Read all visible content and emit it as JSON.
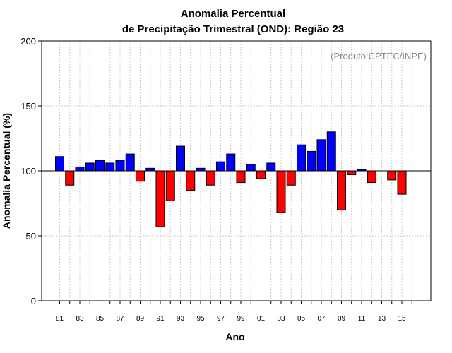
{
  "chart_data": {
    "type": "bar",
    "title": "Anomalia Percentual",
    "subtitle": "de Precipitação Trimestral (OND): Região 23",
    "xlabel": "Ano",
    "ylabel": "Anomalia Percentual (%)",
    "credit": "(Produto:CPTEC/INPE)",
    "ylim": [
      0,
      200
    ],
    "yticks": [
      0,
      50,
      100,
      150,
      200
    ],
    "baseline": 100,
    "grid": true,
    "xtick_labels": [
      "81",
      "83",
      "85",
      "87",
      "89",
      "91",
      "93",
      "95",
      "97",
      "99",
      "01",
      "03",
      "05",
      "07",
      "09",
      "11",
      "13",
      "15"
    ],
    "categories": [
      1981,
      1982,
      1983,
      1984,
      1985,
      1986,
      1987,
      1988,
      1989,
      1990,
      1991,
      1992,
      1993,
      1994,
      1995,
      1996,
      1997,
      1998,
      1999,
      2000,
      2001,
      2002,
      2003,
      2004,
      2005,
      2006,
      2007,
      2008,
      2009,
      2010,
      2011,
      2012,
      2013,
      2014,
      2015,
      2016
    ],
    "values": [
      111,
      89,
      103,
      106,
      108,
      106,
      108,
      113,
      92,
      102,
      57,
      77,
      119,
      85,
      102,
      89,
      107,
      113,
      91,
      105,
      94,
      106,
      68,
      89,
      120,
      115,
      124,
      130,
      70,
      97,
      101,
      91,
      100,
      93,
      82,
      100
    ],
    "colors": {
      "above": "#0000ff",
      "below": "#ff0000"
    }
  }
}
